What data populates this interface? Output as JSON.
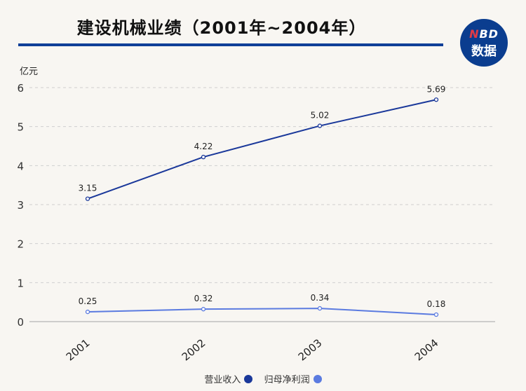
{
  "header": {
    "title": "建设机械业绩（2001年~2004年）",
    "logo_top_first": "N",
    "logo_top_rest": "BD",
    "logo_bottom": "数据"
  },
  "colors": {
    "revenue": "#1a389a",
    "profit": "#5b7be0",
    "rule": "#103f98"
  },
  "chart_data": {
    "type": "line",
    "unit_label": "亿元",
    "categories": [
      "2001",
      "2002",
      "2003",
      "2004"
    ],
    "ylim": [
      0,
      6
    ],
    "yticks": [
      0,
      1,
      2,
      3,
      4,
      5,
      6
    ],
    "series": [
      {
        "name": "营业收入",
        "values": [
          3.15,
          4.22,
          5.02,
          5.69
        ],
        "labels": [
          "3.15",
          "4.22",
          "5.02",
          "5.69"
        ]
      },
      {
        "name": "归母净利润",
        "values": [
          0.25,
          0.32,
          0.34,
          0.18
        ],
        "labels": [
          "0.25",
          "0.32",
          "0.34",
          "0.18"
        ]
      }
    ]
  }
}
